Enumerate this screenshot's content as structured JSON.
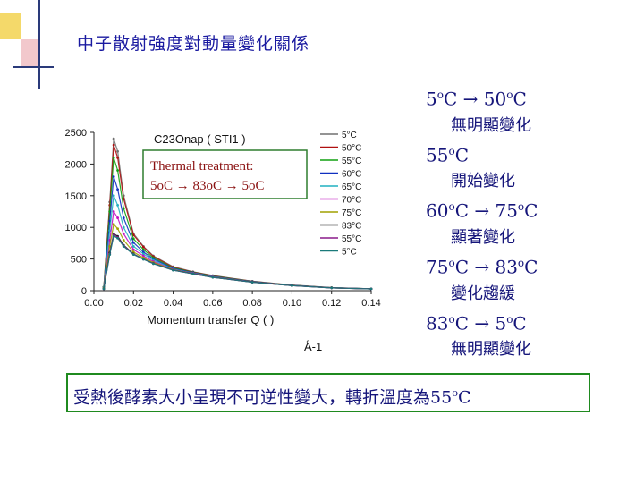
{
  "slide_title": "中子散射強度對動量變化關係",
  "notes": [
    {
      "temp": "5oC → 50oC",
      "desc": "無明顯變化"
    },
    {
      "temp": "55oC",
      "desc": "開始變化"
    },
    {
      "temp": "60oC → 75oC",
      "desc": "顯著變化"
    },
    {
      "temp": "75oC → 83oC",
      "desc": "變化趨緩"
    },
    {
      "temp": "83oC → 5oC",
      "desc": "無明顯變化"
    }
  ],
  "conclusion": "受熱後酵素大小呈現不可逆性變大，轉折溫度為55oC",
  "chart_data": {
    "type": "line",
    "title": "C23Onap ( STI1 )",
    "annotation": "Thermal treatment: 5oC → 83oC → 5oC",
    "xlabel": "Momentum transfer Q (Å-1)",
    "ylabel": "",
    "xlim": [
      0.0,
      0.14
    ],
    "ylim": [
      0,
      2500
    ],
    "x_ticks": [
      "0.00",
      "0.02",
      "0.04",
      "0.06",
      "0.08",
      "0.10",
      "0.12",
      "0.14"
    ],
    "y_ticks": [
      "0",
      "500",
      "1000",
      "1500",
      "2000",
      "2500"
    ],
    "x": [
      0.005,
      0.008,
      0.01,
      0.012,
      0.015,
      0.02,
      0.025,
      0.03,
      0.04,
      0.05,
      0.06,
      0.08,
      0.1,
      0.12,
      0.14
    ],
    "series": [
      {
        "name": "5°C",
        "color": "#707070",
        "values": [
          60,
          1400,
          2400,
          2200,
          1500,
          900,
          700,
          550,
          380,
          300,
          240,
          150,
          90,
          50,
          30
        ]
      },
      {
        "name": "50°C",
        "color": "#b01010",
        "values": [
          60,
          1350,
          2300,
          2100,
          1450,
          880,
          690,
          540,
          370,
          295,
          235,
          148,
          88,
          48,
          30
        ]
      },
      {
        "name": "55°C",
        "color": "#10a010",
        "values": [
          60,
          1250,
          2100,
          1900,
          1300,
          820,
          650,
          520,
          360,
          290,
          230,
          145,
          86,
          47,
          29
        ]
      },
      {
        "name": "60°C",
        "color": "#1030c0",
        "values": [
          50,
          1100,
          1800,
          1600,
          1150,
          760,
          610,
          500,
          350,
          285,
          225,
          142,
          85,
          46,
          29
        ]
      },
      {
        "name": "65°C",
        "color": "#20b0c0",
        "values": [
          50,
          950,
          1500,
          1350,
          1000,
          700,
          580,
          480,
          340,
          280,
          220,
          140,
          84,
          46,
          28
        ]
      },
      {
        "name": "70°C",
        "color": "#c010c0",
        "values": [
          40,
          800,
          1250,
          1150,
          900,
          650,
          550,
          460,
          335,
          275,
          218,
          138,
          83,
          45,
          28
        ]
      },
      {
        "name": "75°C",
        "color": "#a0a000",
        "values": [
          40,
          700,
          1050,
          980,
          800,
          610,
          520,
          445,
          330,
          270,
          215,
          136,
          82,
          45,
          28
        ]
      },
      {
        "name": "83°C",
        "color": "#202020",
        "values": [
          30,
          600,
          900,
          860,
          720,
          580,
          500,
          430,
          325,
          268,
          212,
          135,
          81,
          44,
          28
        ]
      },
      {
        "name": "55°C",
        "color": "#8a1a8a",
        "values": [
          30,
          580,
          880,
          840,
          710,
          575,
          498,
          428,
          324,
          267,
          211,
          134,
          81,
          44,
          28
        ]
      },
      {
        "name": "5°C",
        "color": "#1a7a7a",
        "values": [
          30,
          570,
          860,
          830,
          700,
          570,
          495,
          426,
          323,
          266,
          210,
          134,
          80,
          44,
          28
        ]
      }
    ]
  }
}
